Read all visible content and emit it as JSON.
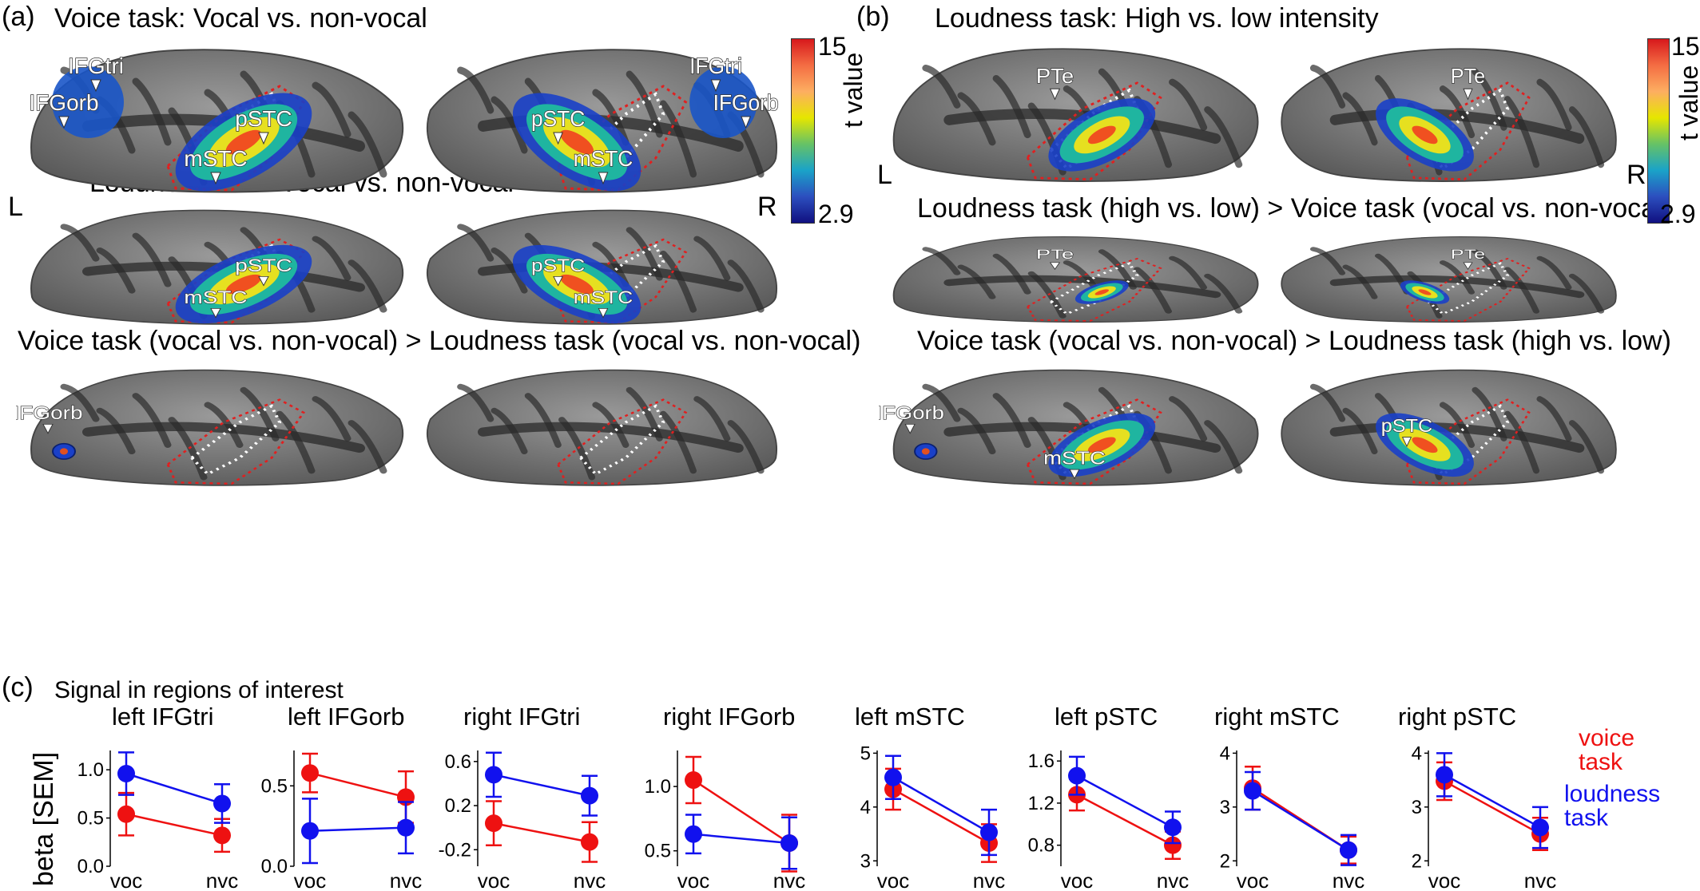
{
  "panels": {
    "a": {
      "letter": "(a)",
      "rows": [
        {
          "title": "Voice task: Vocal vs. non-vocal",
          "left_labels": [
            "IFGtri",
            "IFGorb",
            "pSTC",
            "mSTC"
          ],
          "right_labels": [
            "IFGtri",
            "pSTC",
            "mSTC",
            "IFGorb"
          ],
          "activation": "strong"
        },
        {
          "title": "Loudness task: Vocal vs. non-vocal",
          "left_labels": [
            "pSTC",
            "mSTC"
          ],
          "right_labels": [
            "pSTC",
            "mSTC"
          ],
          "activation": "strong"
        },
        {
          "title": "Voice task (vocal vs. non-vocal) > Loudness task (vocal vs. non-vocal)",
          "left_labels": [
            "IFGorb"
          ],
          "right_labels": [],
          "activation": "minimal"
        }
      ],
      "hemi_left": "L",
      "hemi_right": "R",
      "colorbar": {
        "max": "15",
        "min": "2.9",
        "label": "t value"
      }
    },
    "b": {
      "letter": "(b)",
      "rows": [
        {
          "title": "Loudness task:  High vs. low intensity",
          "left_labels": [
            "PTe"
          ],
          "right_labels": [
            "PTe"
          ],
          "activation": "medium"
        },
        {
          "title": "Loudness task (high vs. low) > Voice task (vocal vs. non-vocal)",
          "left_labels": [
            "PTe"
          ],
          "right_labels": [
            "PTe"
          ],
          "activation": "small"
        },
        {
          "title": "Voice task (vocal vs. non-vocal) > Loudness task (high vs. low)",
          "left_labels": [
            "IFGorb",
            "mSTC"
          ],
          "right_labels": [
            "pSTC"
          ],
          "activation": "medium"
        }
      ],
      "hemi_left": "L",
      "hemi_right": "R",
      "colorbar": {
        "max": "15",
        "min": "2.9",
        "label": "t value"
      }
    },
    "c": {
      "letter": "(c)",
      "heading": "Signal in regions of interest",
      "ylabel": "beta [SEM]",
      "legend": {
        "voice": "voice\ntask",
        "loudness": "loudness\ntask",
        "voice_color": "#ee1111",
        "loudness_color": "#1111ee"
      }
    }
  },
  "chart_data": [
    {
      "type": "line",
      "title": "left IFGtri",
      "categories": [
        "voc",
        "nvc"
      ],
      "yticks": [
        "0.0",
        "0.5",
        "1.0"
      ],
      "ylim": [
        0.0,
        1.2
      ],
      "series": [
        {
          "name": "voice task",
          "values": [
            0.54,
            0.32
          ],
          "err": [
            0.22,
            0.17
          ]
        },
        {
          "name": "loudness task",
          "values": [
            0.96,
            0.65
          ],
          "err": [
            0.22,
            0.2
          ]
        }
      ]
    },
    {
      "type": "line",
      "title": "left IFGorb",
      "categories": [
        "voc",
        "nvc"
      ],
      "yticks": [
        "0.0",
        "0.5"
      ],
      "ylim": [
        0.0,
        0.72
      ],
      "series": [
        {
          "name": "voice task",
          "values": [
            0.58,
            0.43
          ],
          "err": [
            0.12,
            0.16
          ]
        },
        {
          "name": "loudness task",
          "values": [
            0.22,
            0.24
          ],
          "err": [
            0.2,
            0.16
          ]
        }
      ]
    },
    {
      "type": "line",
      "title": "right IFGtri",
      "categories": [
        "voc",
        "nvc"
      ],
      "yticks": [
        "-0.2",
        "0.2",
        "0.6"
      ],
      "ylim": [
        -0.35,
        0.7
      ],
      "series": [
        {
          "name": "voice task",
          "values": [
            0.04,
            -0.13
          ],
          "err": [
            0.2,
            0.18
          ]
        },
        {
          "name": "loudness task",
          "values": [
            0.48,
            0.29
          ],
          "err": [
            0.2,
            0.18
          ]
        }
      ]
    },
    {
      "type": "line",
      "title": "right IFGorb",
      "categories": [
        "voc",
        "nvc"
      ],
      "yticks": [
        "0.5",
        "1.0"
      ],
      "ylim": [
        0.38,
        1.28
      ],
      "series": [
        {
          "name": "voice task",
          "values": [
            1.05,
            0.56
          ],
          "err": [
            0.18,
            0.22
          ]
        },
        {
          "name": "loudness task",
          "values": [
            0.63,
            0.56
          ],
          "err": [
            0.15,
            0.2
          ]
        }
      ]
    },
    {
      "type": "line",
      "title": "left mSTC",
      "categories": [
        "voc",
        "nvc"
      ],
      "yticks": [
        "3",
        "4",
        "5"
      ],
      "ylim": [
        2.9,
        5.05
      ],
      "series": [
        {
          "name": "voice task",
          "values": [
            4.33,
            3.33
          ],
          "err": [
            0.38,
            0.35
          ]
        },
        {
          "name": "loudness task",
          "values": [
            4.55,
            3.53
          ],
          "err": [
            0.4,
            0.42
          ]
        }
      ]
    },
    {
      "type": "line",
      "title": "left pSTC",
      "categories": [
        "voc",
        "nvc"
      ],
      "yticks": [
        "0.8",
        "1.2",
        "1.6"
      ],
      "ylim": [
        0.6,
        1.7
      ],
      "series": [
        {
          "name": "voice task",
          "values": [
            1.28,
            0.8
          ],
          "err": [
            0.15,
            0.13
          ]
        },
        {
          "name": "loudness task",
          "values": [
            1.46,
            0.97
          ],
          "err": [
            0.18,
            0.15
          ]
        }
      ]
    },
    {
      "type": "line",
      "title": "right mSTC",
      "categories": [
        "voc",
        "nvc"
      ],
      "yticks": [
        "2",
        "3",
        "4"
      ],
      "ylim": [
        1.9,
        4.05
      ],
      "series": [
        {
          "name": "voice task",
          "values": [
            3.35,
            2.2
          ],
          "err": [
            0.4,
            0.25
          ]
        },
        {
          "name": "loudness task",
          "values": [
            3.3,
            2.2
          ],
          "err": [
            0.35,
            0.28
          ]
        }
      ]
    },
    {
      "type": "line",
      "title": "right pSTC",
      "categories": [
        "voc",
        "nvc"
      ],
      "yticks": [
        "2",
        "3",
        "4"
      ],
      "ylim": [
        1.9,
        4.05
      ],
      "series": [
        {
          "name": "voice task",
          "values": [
            3.48,
            2.5
          ],
          "err": [
            0.35,
            0.3
          ]
        },
        {
          "name": "loudness task",
          "values": [
            3.6,
            2.62
          ],
          "err": [
            0.4,
            0.38
          ]
        }
      ]
    }
  ]
}
